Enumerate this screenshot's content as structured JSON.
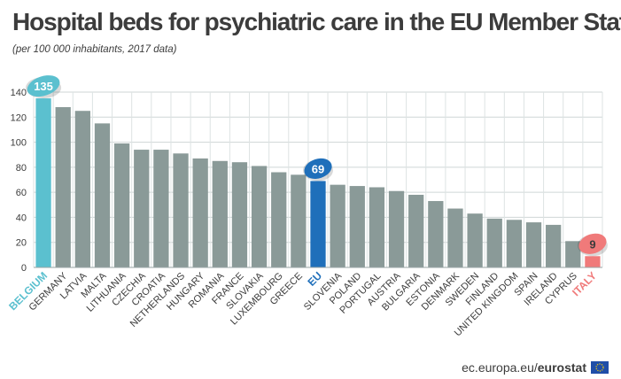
{
  "header": {
    "title": "Hospital beds for psychiatric care in the EU Member States",
    "subtitle": "(per 100 000 inhabitants, 2017 data)"
  },
  "footer": {
    "source_prefix": "ec.europa.eu/",
    "source_brand": "eurostat"
  },
  "colors": {
    "default_bar": "#8a9a98",
    "highlight_max": "#5bc0cf",
    "highlight_eu": "#1f6fba",
    "highlight_min": "#f07a7a",
    "label_default": "#3c3c3c"
  },
  "chart_data": {
    "type": "bar",
    "title": "Hospital beds for psychiatric care in the EU Member States",
    "subtitle": "(per 100 000 inhabitants, 2017 data)",
    "categories": [
      "BELGIUM",
      "GERMANY",
      "LATVIA",
      "MALTA",
      "LITHUANIA",
      "CZECHIA",
      "CROATIA",
      "NETHERLANDS",
      "HUNGARY",
      "ROMANIA",
      "FRANCE",
      "SLOVAKIA",
      "LUXEMBOURG",
      "GREECE",
      "EU",
      "SLOVENIA",
      "POLAND",
      "PORTUGAL",
      "AUSTRIA",
      "BULGARIA",
      "ESTONIA",
      "DENMARK",
      "SWEDEN",
      "FINLAND",
      "UNITED KINGDOM",
      "SPAIN",
      "IRELAND",
      "CYPRUS",
      "ITALY"
    ],
    "values": [
      135,
      128,
      125,
      115,
      99,
      94,
      94,
      91,
      87,
      85,
      84,
      81,
      76,
      74,
      69,
      66,
      65,
      64,
      61,
      58,
      53,
      47,
      43,
      39,
      38,
      36,
      34,
      21,
      9
    ],
    "highlights": {
      "BELGIUM": {
        "color": "#5bc0cf",
        "callout": "135"
      },
      "EU": {
        "color": "#1f6fba",
        "callout": "69"
      },
      "ITALY": {
        "color": "#f07a7a",
        "callout": "9"
      }
    },
    "yticks": [
      0,
      20,
      40,
      60,
      80,
      100,
      120,
      140
    ],
    "ylim": [
      0,
      140
    ],
    "xlabel": "",
    "ylabel": "",
    "grid": true,
    "legend": "none"
  }
}
